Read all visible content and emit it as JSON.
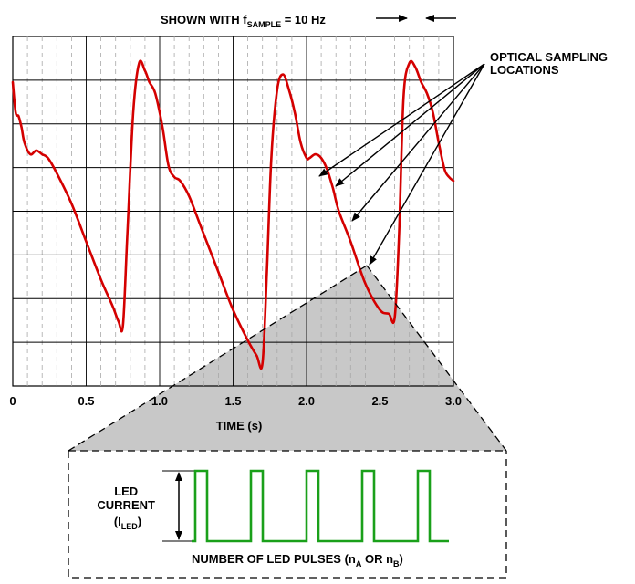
{
  "chart_data": {
    "type": "line",
    "xlim": [
      0,
      3.0
    ],
    "x_ticks": [
      "0",
      "0.5",
      "1.0",
      "1.5",
      "2.0",
      "2.5",
      "3.0"
    ],
    "xlabel": "TIME (s)",
    "ylabel": "",
    "grid": true,
    "series": [
      {
        "color": "#d40000",
        "x": [
          0.0,
          0.02,
          0.04,
          0.06,
          0.08,
          0.12,
          0.16,
          0.2,
          0.24,
          0.3,
          0.4,
          0.5,
          0.6,
          0.68,
          0.72,
          0.75,
          0.78,
          0.82,
          0.86,
          0.9,
          0.93,
          0.97,
          1.02,
          1.06,
          1.1,
          1.14,
          1.2,
          1.28,
          1.4,
          1.5,
          1.6,
          1.66,
          1.7,
          1.73,
          1.76,
          1.8,
          1.84,
          1.88,
          1.92,
          1.96,
          2.0,
          2.02,
          2.06,
          2.1,
          2.14,
          2.18,
          2.22,
          2.3,
          2.4,
          2.5,
          2.56,
          2.6,
          2.63,
          2.66,
          2.7,
          2.74,
          2.78,
          2.82,
          2.86,
          2.9,
          2.94,
          2.97,
          3.0
        ],
        "y": [
          2.2,
          1.8,
          1.75,
          1.6,
          1.4,
          1.25,
          1.3,
          1.25,
          1.2,
          1.0,
          0.6,
          0.1,
          -0.4,
          -0.75,
          -0.95,
          -1.0,
          0.2,
          1.8,
          2.45,
          2.35,
          2.2,
          2.05,
          1.6,
          1.1,
          0.95,
          0.9,
          0.7,
          0.3,
          -0.3,
          -0.8,
          -1.2,
          -1.4,
          -1.5,
          -0.3,
          1.2,
          2.1,
          2.3,
          2.1,
          1.8,
          1.4,
          1.2,
          1.2,
          1.25,
          1.2,
          1.05,
          0.8,
          0.5,
          0.1,
          -0.45,
          -0.8,
          -0.85,
          -0.9,
          0.2,
          2.0,
          2.45,
          2.4,
          2.2,
          2.05,
          1.8,
          1.4,
          1.05,
          0.95,
          0.9
        ]
      }
    ],
    "annotations": {
      "sample_note_prefix": "SHOWN WITH f",
      "sample_note_sub": "SAMPLE",
      "sample_note_suffix": " = 10 Hz",
      "sampling_label_line1": "OPTICAL SAMPLING",
      "sampling_label_line2": "LOCATIONS"
    }
  },
  "inset": {
    "led_label_line1": "LED",
    "led_label_line2": "CURRENT",
    "led_label_line3_prefix": "(I",
    "led_label_line3_sub": "LED",
    "led_label_line3_suffix": ")",
    "pulse_label_prefix": "NUMBER OF LED PULSES (n",
    "pulse_label_sub_a": "A",
    "pulse_label_mid": " OR n",
    "pulse_label_sub_b": "B",
    "pulse_label_suffix": ")",
    "pulse_count": 5,
    "pulse_color": "#1aa01a"
  }
}
